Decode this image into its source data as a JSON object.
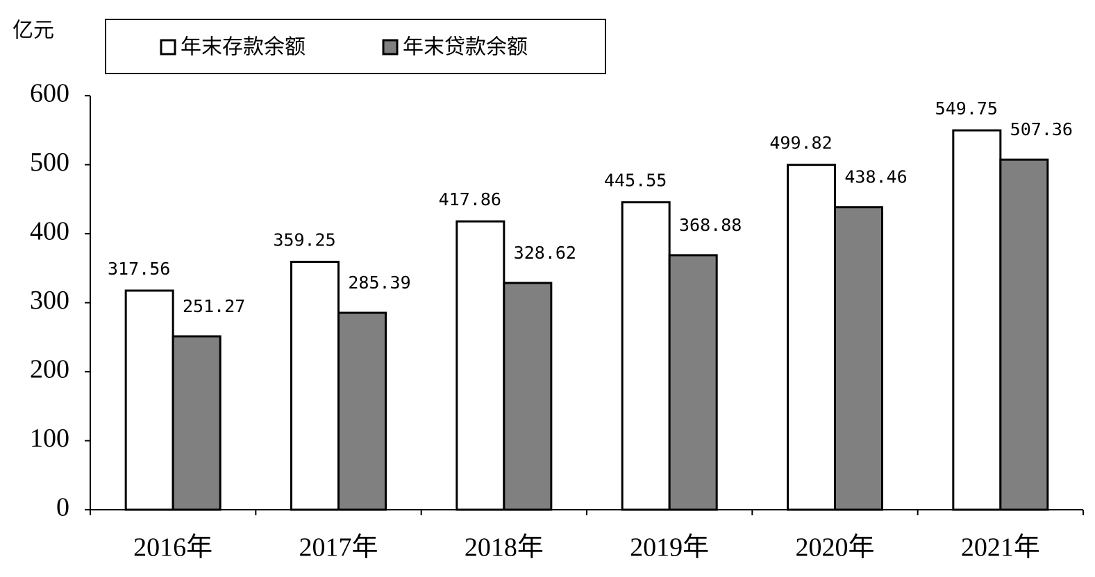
{
  "chart_data": {
    "type": "bar",
    "y_axis_label": "亿元",
    "categories": [
      "2016年",
      "2017年",
      "2018年",
      "2019年",
      "2020年",
      "2021年"
    ],
    "series": [
      {
        "name": "年末存款余额",
        "color": "#ffffff",
        "values": [
          317.56,
          359.25,
          417.86,
          445.55,
          499.82,
          549.75
        ]
      },
      {
        "name": "年末贷款余额",
        "color": "#808080",
        "values": [
          251.27,
          285.39,
          328.62,
          368.88,
          438.46,
          507.36
        ]
      }
    ],
    "ylim": [
      0,
      600
    ],
    "yticks": [
      0,
      100,
      200,
      300,
      400,
      500,
      600
    ]
  }
}
